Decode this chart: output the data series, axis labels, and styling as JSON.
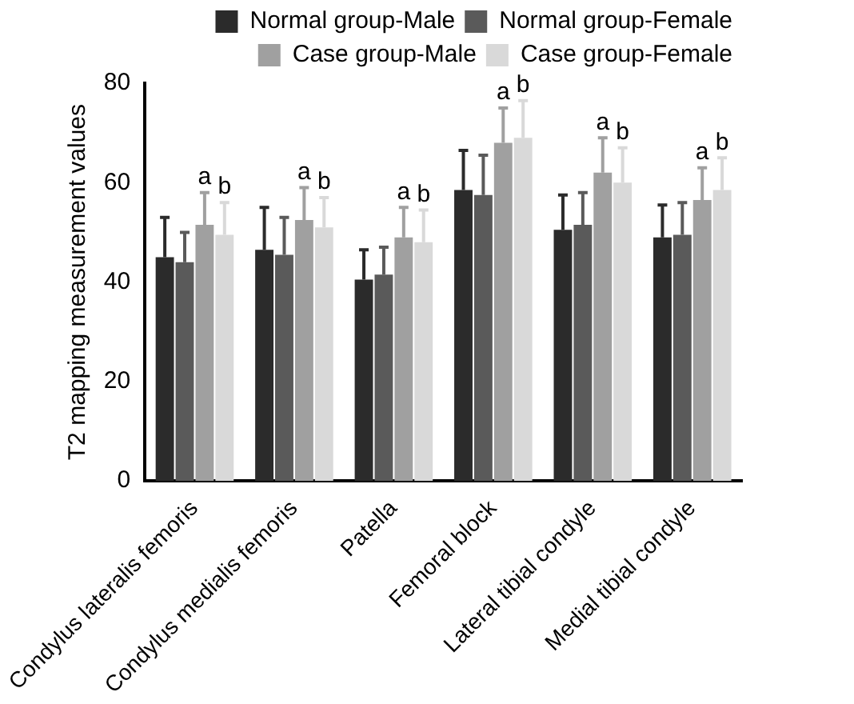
{
  "chart_data": {
    "type": "bar",
    "ylabel": "T2 mapping measurement values",
    "categories": [
      "Condylus lateralis femoris",
      "Condylus medialis femoris",
      "Patella",
      "Femoral block",
      "Lateral tibial condyle",
      "Medial tibial condyle"
    ],
    "series": [
      {
        "name": "Normal group-Male",
        "color": "#2b2b2b",
        "values": [
          45,
          46.5,
          40.5,
          58.5,
          50.5,
          49
        ],
        "errors": [
          [
            45,
            53
          ],
          [
            46.5,
            55
          ],
          [
            40.5,
            46.5
          ],
          [
            58.5,
            66.5
          ],
          [
            50.5,
            57.5
          ],
          [
            49,
            55.5
          ]
        ]
      },
      {
        "name": "Normal group-Female",
        "color": "#5a5a5a",
        "values": [
          44,
          45.5,
          41.5,
          57.5,
          51.5,
          49.5
        ],
        "errors": [
          [
            44,
            50
          ],
          [
            45.5,
            53
          ],
          [
            41.5,
            47
          ],
          [
            57.5,
            65.5
          ],
          [
            51.5,
            58
          ],
          [
            49.5,
            56
          ]
        ]
      },
      {
        "name": "Case group-Male",
        "color": "#a0a0a0",
        "values": [
          51.5,
          52.5,
          49,
          68,
          62,
          56.5
        ],
        "errors": [
          [
            51.5,
            58
          ],
          [
            52.5,
            59
          ],
          [
            49,
            55
          ],
          [
            68,
            75
          ],
          [
            62,
            69
          ],
          [
            56.5,
            63
          ]
        ]
      },
      {
        "name": "Case group-Female",
        "color": "#d9d9d9",
        "values": [
          49.5,
          51,
          48,
          69,
          60,
          58.5
        ],
        "errors": [
          [
            49.5,
            56
          ],
          [
            51,
            57
          ],
          [
            48,
            54.5
          ],
          [
            69,
            76.5
          ],
          [
            60,
            67
          ],
          [
            58.5,
            65
          ]
        ]
      }
    ],
    "annotations": [
      "a",
      "b",
      "a",
      "b",
      "a",
      "b",
      "a",
      "b",
      "a",
      "b",
      "a",
      "b"
    ],
    "ylim": [
      0,
      80
    ],
    "yticks": [
      0,
      20,
      40,
      60,
      80
    ],
    "grid": false,
    "legend": "top"
  }
}
